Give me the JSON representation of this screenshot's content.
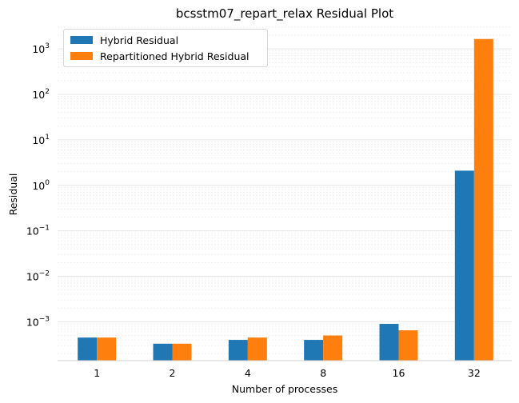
{
  "chart_data": {
    "type": "bar",
    "title": "bcsstm07_repart_relax Residual Plot",
    "xlabel": "Number of processes",
    "ylabel": "Residual",
    "yscale": "log",
    "ylim": [
      0.00014,
      3000
    ],
    "categories": [
      "1",
      "2",
      "4",
      "8",
      "16",
      "32"
    ],
    "series": [
      {
        "name": "Hybrid Residual",
        "color": "#1f77b4",
        "values": [
          0.00045,
          0.00033,
          0.0004,
          0.0004,
          0.0009,
          2.1
        ]
      },
      {
        "name": "Repartitioned Hybrid Residual",
        "color": "#ff7f0e",
        "values": [
          0.00045,
          0.00033,
          0.00045,
          0.0005,
          0.00065,
          1650
        ]
      }
    ],
    "yticks": [
      {
        "value": 0.001,
        "base": "10",
        "exp": "−3"
      },
      {
        "value": 0.01,
        "base": "10",
        "exp": "−2"
      },
      {
        "value": 0.1,
        "base": "10",
        "exp": "−1"
      },
      {
        "value": 1,
        "base": "10",
        "exp": "0"
      },
      {
        "value": 10,
        "base": "10",
        "exp": "1"
      },
      {
        "value": 100,
        "base": "10",
        "exp": "2"
      },
      {
        "value": 1000,
        "base": "10",
        "exp": "3"
      }
    ],
    "grid": true,
    "legend_position": "top-left"
  }
}
